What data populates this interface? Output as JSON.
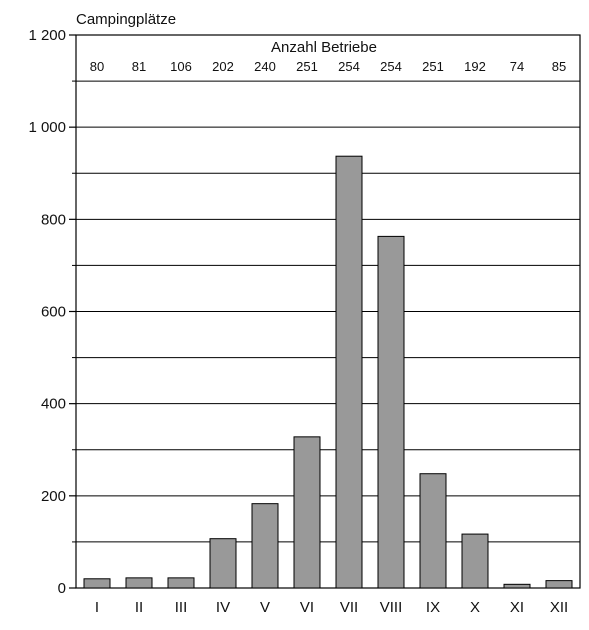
{
  "chart_data": {
    "type": "bar",
    "ylabel": "Campingplätze",
    "annotation": "Anzahl Betriebe",
    "categories": [
      "I",
      "II",
      "III",
      "IV",
      "V",
      "VI",
      "VII",
      "VIII",
      "IX",
      "X",
      "XI",
      "XII"
    ],
    "values": [
      20,
      22,
      22,
      107,
      183,
      328,
      937,
      763,
      248,
      117,
      8,
      16
    ],
    "counts": [
      "80",
      "81",
      "106",
      "202",
      "240",
      "251",
      "254",
      "254",
      "251",
      "192",
      "74",
      "85"
    ],
    "ylim": [
      0,
      1200
    ],
    "yticks": [
      0,
      200,
      400,
      600,
      800,
      1000,
      1200
    ],
    "ytick_labels": [
      "0",
      "200",
      "400",
      "600",
      "800",
      "1 000",
      "1 200"
    ],
    "grid_step": 100,
    "bar_color": "#999999",
    "grid": true
  }
}
